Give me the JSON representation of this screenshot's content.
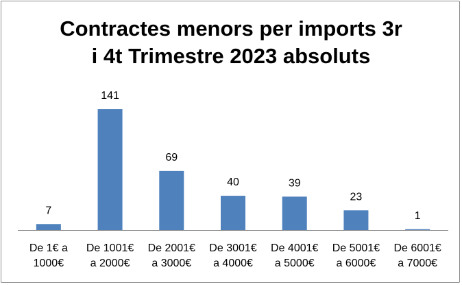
{
  "chart_data": {
    "type": "bar",
    "title_lines": [
      "Contractes menors per imports 3r",
      "i 4t Trimestre 2023 absoluts"
    ],
    "categories": [
      [
        "De 1€ a",
        "1000€"
      ],
      [
        "De 1001€",
        "a 2000€"
      ],
      [
        "De 2001€",
        "a 3000€"
      ],
      [
        "De 3001€",
        "a 4000€"
      ],
      [
        "De 4001€",
        "a 5000€"
      ],
      [
        "De 5001€",
        "a 6000€"
      ],
      [
        "De 6001€",
        "a 7000€"
      ]
    ],
    "values": [
      7,
      141,
      69,
      40,
      39,
      23,
      1
    ],
    "ylim": [
      0,
      141
    ],
    "bar_color": "#4f81bd",
    "grid": false,
    "legend": "none",
    "data_labels": true
  }
}
